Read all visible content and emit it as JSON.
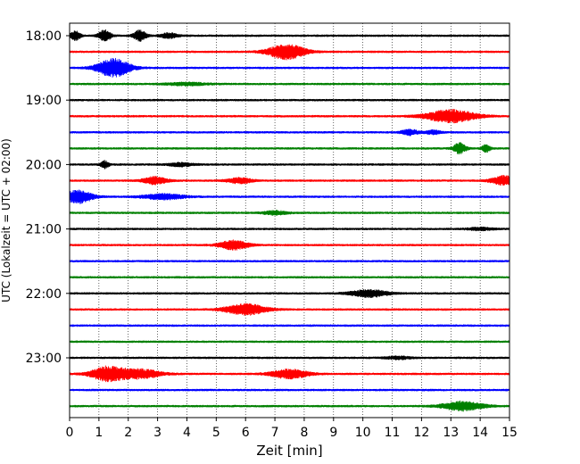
{
  "chart_data": {
    "type": "line",
    "title": "",
    "xlabel": "Zeit  [min]",
    "ylabel": "UTC (Lokalzeit = UTC + 02:00)",
    "xlim": [
      0,
      15
    ],
    "x_ticks": [
      0,
      1,
      2,
      3,
      4,
      5,
      6,
      7,
      8,
      9,
      10,
      11,
      12,
      13,
      14,
      15
    ],
    "y_tick_labels": [
      "18:00",
      "19:00",
      "20:00",
      "21:00",
      "22:00",
      "23:00"
    ],
    "grid": "vertical dotted lines at each minute",
    "legend": "none",
    "trace_interval_minutes": 15,
    "trace_color_cycle": [
      "#000000",
      "#ff0000",
      "#0000ff",
      "#008000"
    ],
    "series": [
      {
        "start": "18:00",
        "color": "#000000",
        "events": [
          {
            "t": 0.2,
            "amp": 5,
            "w": 0.12
          },
          {
            "t": 1.2,
            "amp": 6,
            "w": 0.15
          },
          {
            "t": 2.4,
            "amp": 6,
            "w": 0.15
          },
          {
            "t": 3.4,
            "amp": 3,
            "w": 0.2
          }
        ]
      },
      {
        "start": "18:15",
        "color": "#ff0000",
        "events": [
          {
            "t": 7.4,
            "amp": 8,
            "w": 0.45
          }
        ]
      },
      {
        "start": "18:30",
        "color": "#0000ff",
        "events": [
          {
            "t": 1.5,
            "amp": 10,
            "w": 0.4
          }
        ]
      },
      {
        "start": "18:45",
        "color": "#008000",
        "events": [
          {
            "t": 4.0,
            "amp": 1.5,
            "w": 0.5
          }
        ]
      },
      {
        "start": "19:00",
        "color": "#000000",
        "events": []
      },
      {
        "start": "19:15",
        "color": "#ff0000",
        "events": [
          {
            "t": 13.0,
            "amp": 7,
            "w": 0.6
          }
        ]
      },
      {
        "start": "19:30",
        "color": "#0000ff",
        "events": [
          {
            "t": 11.6,
            "amp": 3,
            "w": 0.2
          },
          {
            "t": 12.4,
            "amp": 2,
            "w": 0.2
          }
        ]
      },
      {
        "start": "19:45",
        "color": "#008000",
        "events": [
          {
            "t": 13.3,
            "amp": 6,
            "w": 0.15
          },
          {
            "t": 14.2,
            "amp": 4,
            "w": 0.1
          }
        ]
      },
      {
        "start": "20:00",
        "color": "#000000",
        "events": [
          {
            "t": 1.2,
            "amp": 4,
            "w": 0.1
          },
          {
            "t": 3.8,
            "amp": 2,
            "w": 0.3
          }
        ]
      },
      {
        "start": "20:15",
        "color": "#ff0000",
        "events": [
          {
            "t": 2.9,
            "amp": 4,
            "w": 0.3
          },
          {
            "t": 5.8,
            "amp": 3,
            "w": 0.3
          },
          {
            "t": 14.8,
            "amp": 5,
            "w": 0.3
          }
        ]
      },
      {
        "start": "20:30",
        "color": "#0000ff",
        "events": [
          {
            "t": 0.3,
            "amp": 7,
            "w": 0.35
          },
          {
            "t": 3.2,
            "amp": 3,
            "w": 0.5
          }
        ]
      },
      {
        "start": "20:45",
        "color": "#008000",
        "events": [
          {
            "t": 7.0,
            "amp": 2,
            "w": 0.3
          }
        ]
      },
      {
        "start": "21:00",
        "color": "#000000",
        "events": [
          {
            "t": 14.0,
            "amp": 1.5,
            "w": 0.3
          }
        ]
      },
      {
        "start": "21:15",
        "color": "#ff0000",
        "events": [
          {
            "t": 5.6,
            "amp": 5,
            "w": 0.35
          }
        ]
      },
      {
        "start": "21:30",
        "color": "#0000ff",
        "events": []
      },
      {
        "start": "21:45",
        "color": "#008000",
        "events": []
      },
      {
        "start": "22:00",
        "color": "#000000",
        "events": [
          {
            "t": 10.2,
            "amp": 4,
            "w": 0.45
          }
        ]
      },
      {
        "start": "22:15",
        "color": "#ff0000",
        "events": [
          {
            "t": 6.0,
            "amp": 6,
            "w": 0.5
          }
        ]
      },
      {
        "start": "22:30",
        "color": "#0000ff",
        "events": []
      },
      {
        "start": "22:45",
        "color": "#008000",
        "events": []
      },
      {
        "start": "23:00",
        "color": "#000000",
        "events": [
          {
            "t": 11.2,
            "amp": 1.5,
            "w": 0.3
          }
        ]
      },
      {
        "start": "23:15",
        "color": "#ff0000",
        "events": [
          {
            "t": 1.3,
            "amp": 8,
            "w": 0.4
          },
          {
            "t": 2.4,
            "amp": 5,
            "w": 0.5
          },
          {
            "t": 7.5,
            "amp": 5,
            "w": 0.45
          }
        ]
      },
      {
        "start": "23:30",
        "color": "#0000ff",
        "events": []
      },
      {
        "start": "23:45",
        "color": "#008000",
        "events": [
          {
            "t": 13.4,
            "amp": 5,
            "w": 0.5
          }
        ]
      }
    ]
  }
}
